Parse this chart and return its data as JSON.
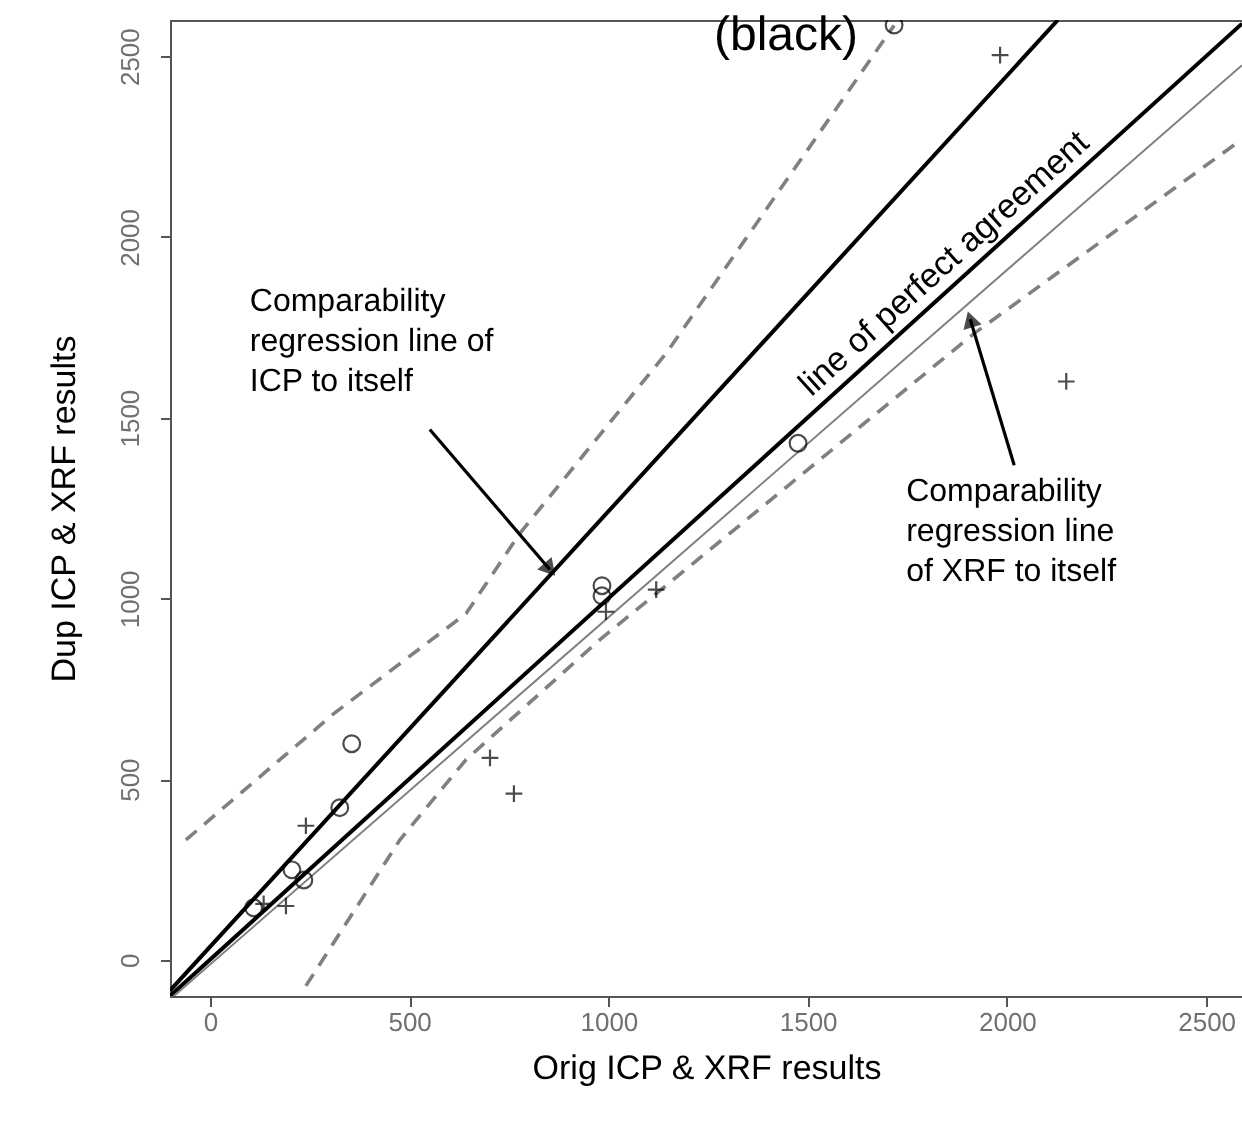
{
  "chart_data": {
    "type": "scatter",
    "xlabel": "Orig ICP & XRF results",
    "ylabel": "Dup ICP & XRF results",
    "xlim": [
      -100,
      2590
    ],
    "ylim": [
      -100,
      2600
    ],
    "xticks": [
      0,
      500,
      1000,
      1500,
      2000,
      2500
    ],
    "yticks": [
      0,
      500,
      1000,
      1500,
      2000,
      2500
    ],
    "grid": false,
    "series": [
      {
        "marker": "circle",
        "color": "#000000",
        "x": [
          110,
          206,
          236,
          326,
          356,
          984,
          984,
          1476,
          1717
        ],
        "values": [
          144,
          249,
          221,
          421,
          598,
          1035,
          1007,
          1429,
          2586
        ]
      },
      {
        "marker": "cross",
        "color": "#000000",
        "x": [
          135,
          191,
          241,
          703,
          763,
          994,
          1120,
          1983,
          2149
        ],
        "values": [
          155,
          149,
          371,
          559,
          460,
          963,
          1024,
          2503,
          1600
        ]
      },
      {
        "type": "line",
        "line_style": "solid",
        "color": "#000000",
        "x": [
          -100,
          2590
        ],
        "values": [
          -100,
          2590
        ]
      },
      {
        "type": "line",
        "line_style": "solid",
        "color": "#000000",
        "x": [
          -100,
          2128
        ],
        "values": [
          -85,
          2600
        ]
      },
      {
        "type": "line",
        "line_style": "solid",
        "color": "#808080",
        "x": [
          -90,
          2590
        ],
        "values": [
          -100,
          2475
        ]
      },
      {
        "type": "line",
        "line_style": "dashed",
        "color": "#808080",
        "x": [
          -60,
          311,
          643,
          778,
          1145,
          1717
        ],
        "values": [
          332,
          681,
          958,
          1180,
          1678,
          2585
        ]
      },
      {
        "type": "line",
        "line_style": "dashed",
        "color": "#808080",
        "x": [
          241,
          477,
          643,
          979,
          1918,
          2590
        ],
        "values": [
          -72,
          332,
          554,
          886,
          1733,
          2270
        ]
      }
    ],
    "annotations": [
      "(black)",
      {
        "text": "line of perfect agreement",
        "x": 1880,
        "y": 1880
      },
      {
        "text": "Comparability\nregression line of\nICP to itself",
        "x": 853,
        "y": 1080
      },
      {
        "text": "Comparability\nregression line\nof XRF to itself",
        "x": 1908,
        "y": 1772
      }
    ]
  }
}
